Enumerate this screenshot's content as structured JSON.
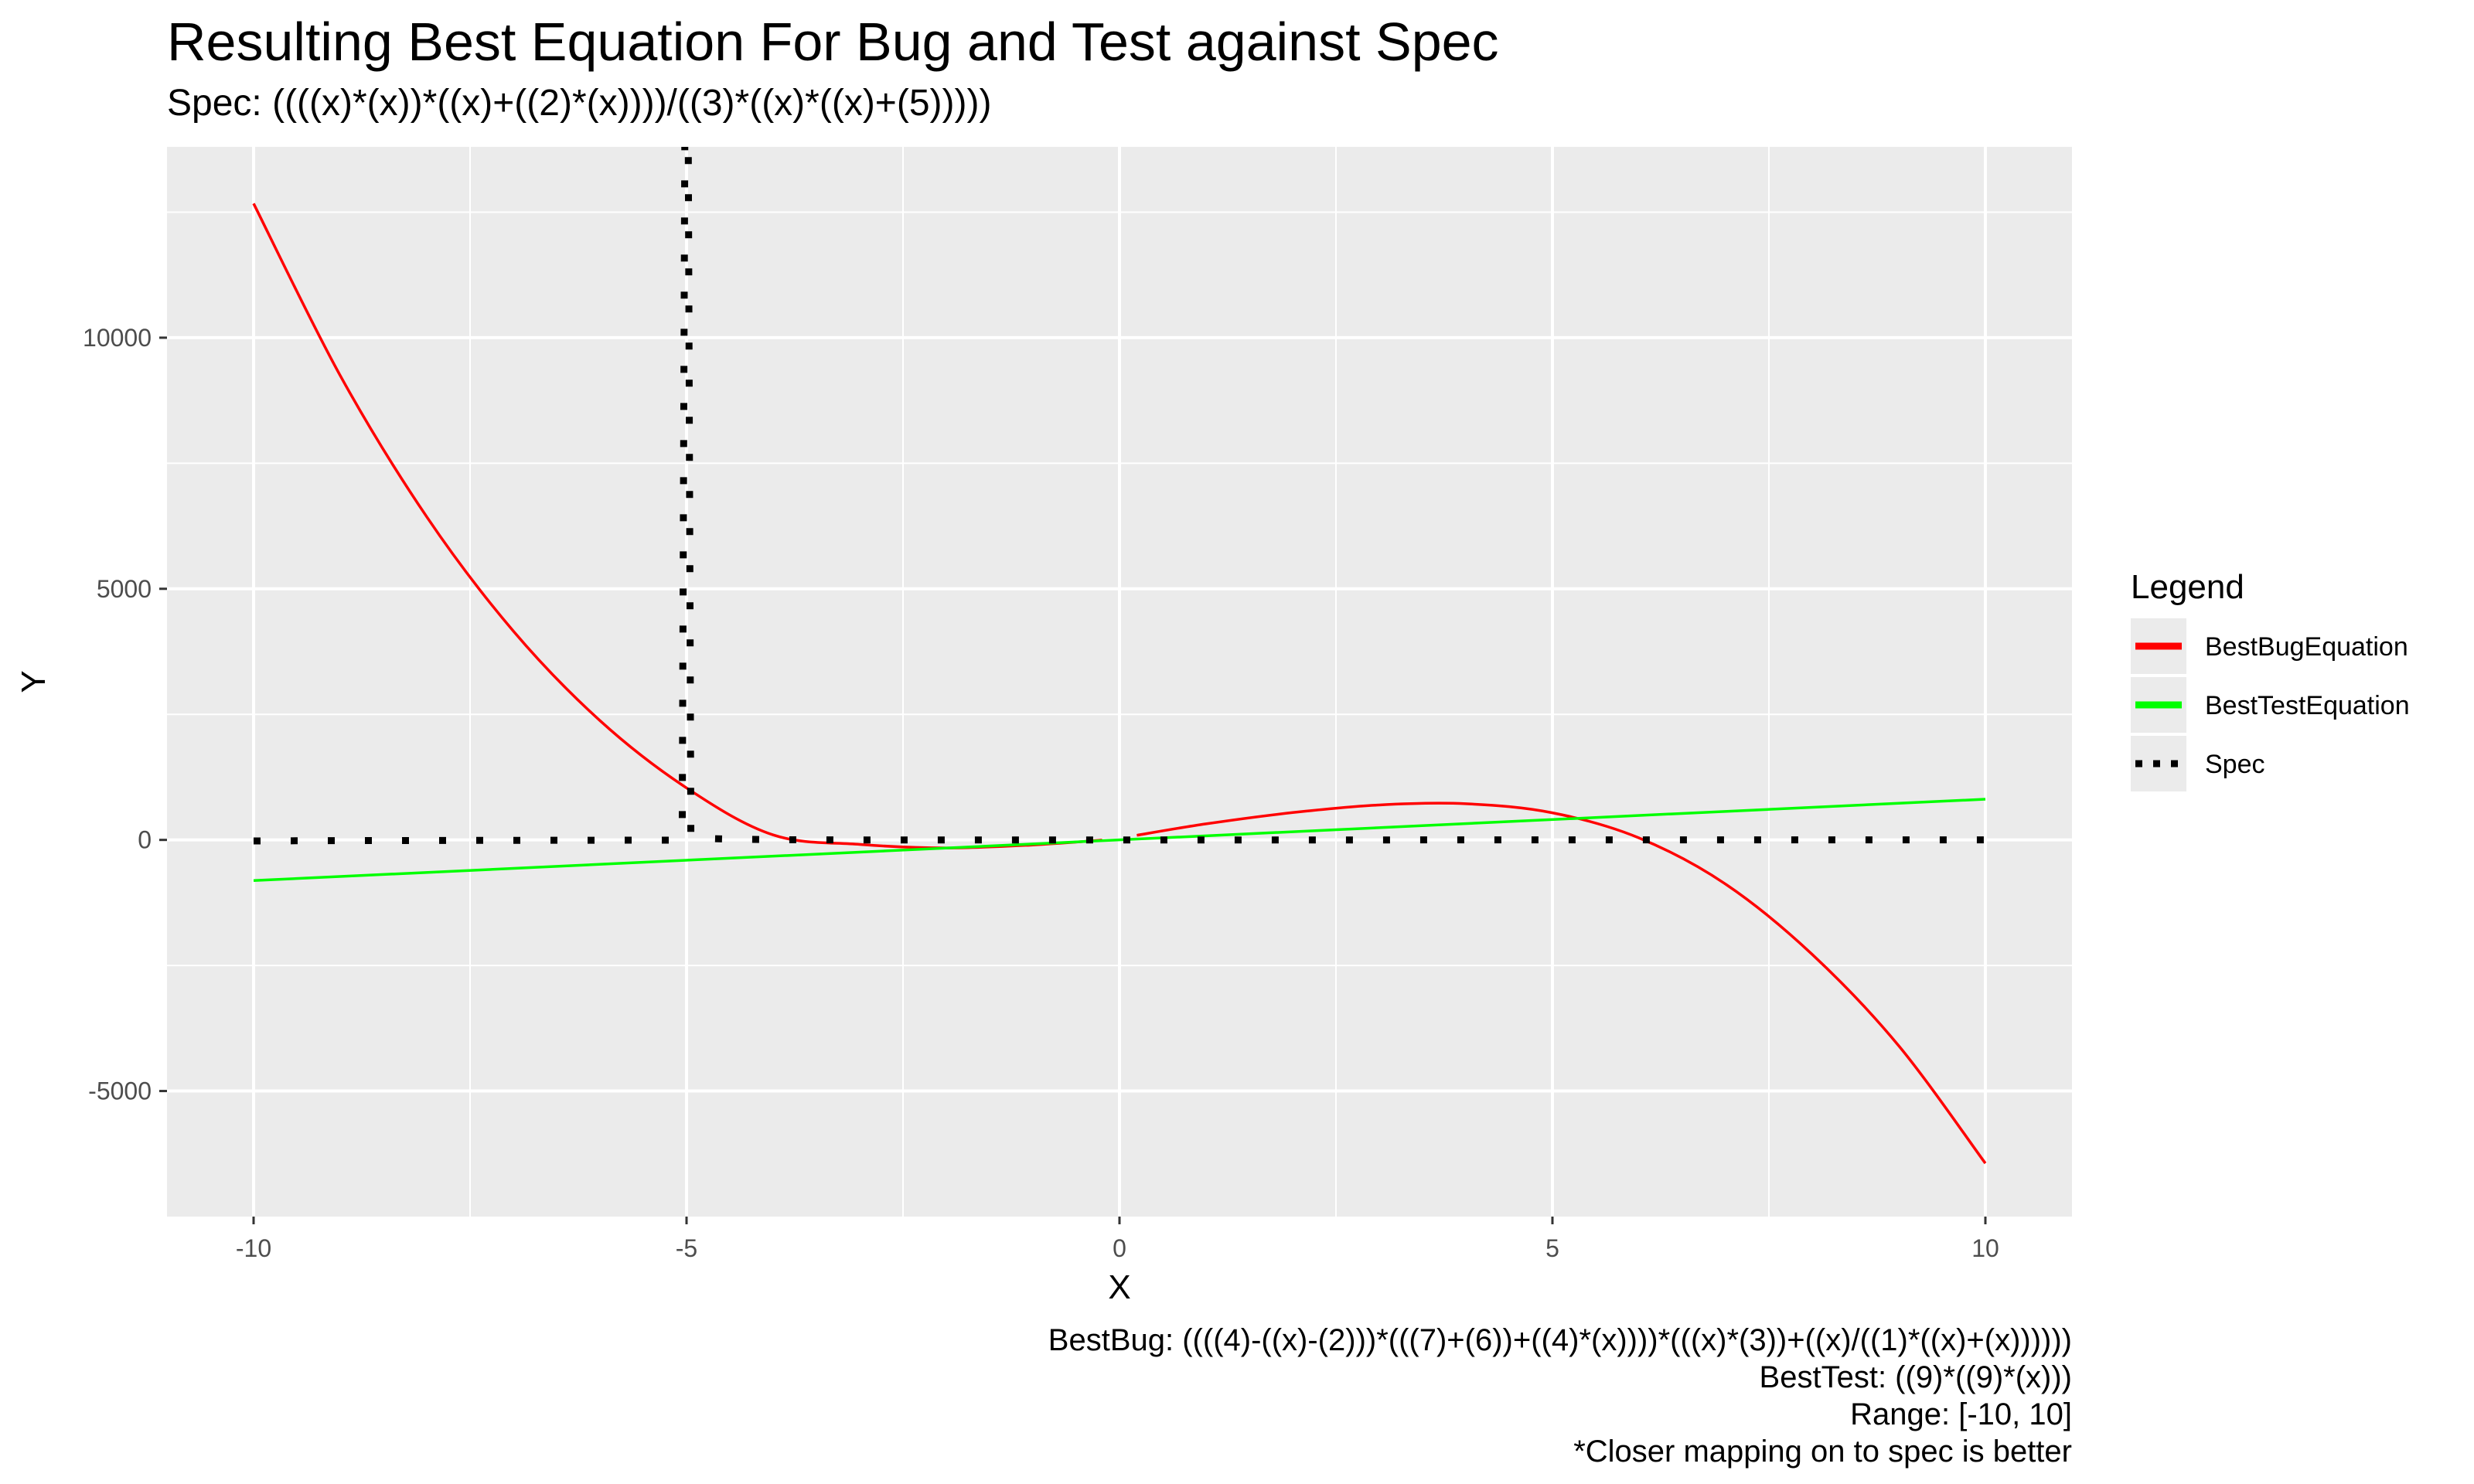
{
  "chart_data": {
    "type": "line",
    "title": "Resulting Best Equation For Bug and Test against Spec",
    "subtitle": "Spec: ((((x)*(x))*((x)+((2)*(x))))/((3)*((x)*((x)+(5)))))",
    "xlabel": "X",
    "ylabel": "Y",
    "xlim": [
      -11,
      11
    ],
    "ylim": [
      -7500,
      13800
    ],
    "x_ticks": [
      -10,
      -5,
      0,
      5,
      10
    ],
    "x_tick_labels": [
      "-10",
      "-5",
      "0",
      "5",
      "10"
    ],
    "y_ticks": [
      -5000,
      0,
      5000,
      10000
    ],
    "y_tick_labels": [
      "-5000",
      "0",
      "5000",
      "10000"
    ],
    "grid": true,
    "legend_title": "Legend",
    "legend_position": "right",
    "series": [
      {
        "name": "BestBugEquation",
        "color": "#ff0000",
        "style": "solid",
        "x": [
          -10,
          -9,
          -8,
          -7,
          -6,
          -5,
          -4,
          -3,
          -2,
          -1,
          -0.2,
          0.2,
          1,
          2,
          3,
          4,
          5,
          6,
          7,
          8,
          9,
          10
        ],
        "y": [
          12672,
          9248,
          6432,
          4158,
          2376,
          1035,
          100,
          -90,
          -160,
          -100,
          -4,
          92,
          320,
          544,
          696,
          720,
          540,
          40,
          -880,
          -2280,
          -4100,
          -6440
        ]
      },
      {
        "name": "BestTestEquation",
        "color": "#00ff00",
        "style": "solid",
        "x": [
          -10,
          10
        ],
        "y": [
          -810,
          810
        ]
      },
      {
        "name": "Spec",
        "color": "#000000",
        "style": "dotted",
        "x": [
          -10,
          -9,
          -8,
          -7,
          -6,
          -5.5,
          -5.2,
          -5.1,
          -5.05,
          -5.02,
          -4.98,
          -4.95,
          -4.9,
          -4.8,
          -4.5,
          -4,
          -3,
          -2,
          -1,
          0,
          1,
          2,
          3,
          4,
          5,
          6,
          7,
          8,
          9,
          10
        ],
        "y": [
          -20,
          -14.4,
          -10.7,
          -7.9,
          -6,
          -5.2,
          -4.8,
          70,
          150,
          14000,
          14000,
          45,
          30,
          30,
          15,
          4,
          0.4,
          -0.6,
          -0.25,
          0,
          0.17,
          0.29,
          0.38,
          0.44,
          0.5,
          0.55,
          0.58,
          0.62,
          0.64,
          0.67
        ]
      }
    ]
  },
  "captions": [
    "BestBug: ((((4)-((x)-(2)))*(((7)+(6))+((4)*(x))))*(((x)*(3))+((x)/((1)*((x)+(x))))))",
    "BestTest: ((9)*((9)*(x)))",
    "Range: [-10, 10]",
    "*Closer mapping on to spec is better"
  ]
}
